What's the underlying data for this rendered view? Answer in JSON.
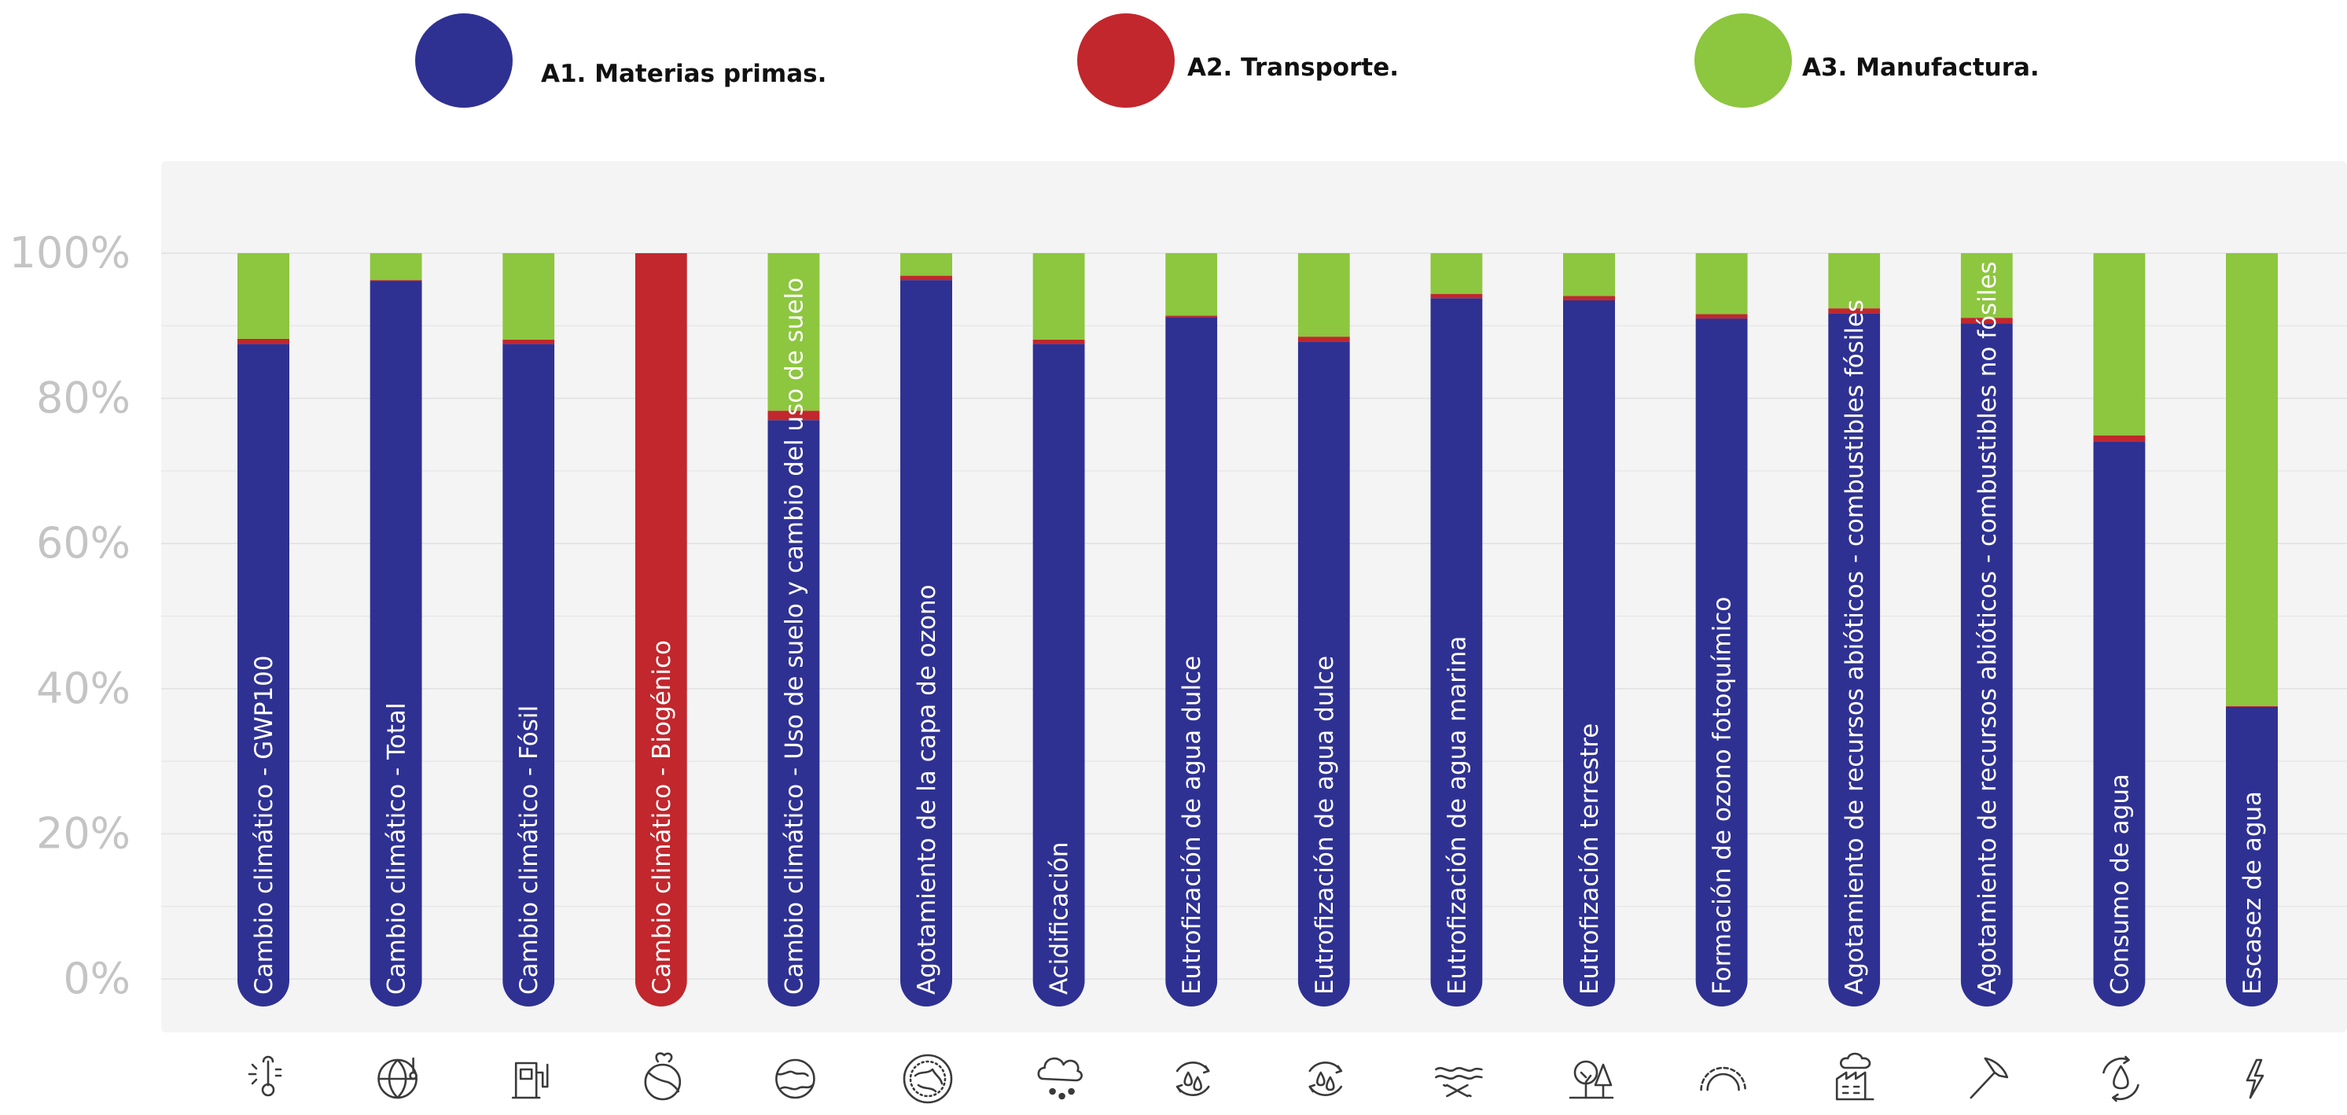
{
  "colors": {
    "a1": "#2e3192",
    "a2": "#c1272d",
    "a3": "#8dc63f",
    "panel": "#f4f4f4",
    "grid": "#e2e2e2",
    "tick": "#c4c4c4"
  },
  "legend": [
    {
      "key": "a1",
      "label": "A1. Materias primas."
    },
    {
      "key": "a2",
      "label": "A2. Transporte."
    },
    {
      "key": "a3",
      "label": "A3. Manufactura."
    }
  ],
  "chart_data": {
    "type": "bar",
    "stacked": true,
    "orientation": "vertical",
    "y_tick_labels": [
      "0%",
      "20%",
      "40%",
      "60%",
      "80%",
      "100%"
    ],
    "ylim": [
      0,
      100
    ],
    "grid": true,
    "legend_position": "top",
    "categories": [
      "Cambio climático - GWP100",
      "Cambio climático - Total",
      "Cambio climático - Fósil",
      "Cambio climático - Biogénico",
      "Cambio climático - Uso de suelo y cambio del uso de suelo",
      "Agotamiento de la capa de ozono",
      "Acidificación",
      "Eutrofización de agua dulce",
      "Eutrofización de agua dulce",
      "Eutrofización de agua marina",
      "Eutrofización terrestre",
      "Formación de ozono fotoquímico",
      "Agotamiento de recursos abióticos - combustibles fósiles",
      "Agotamiento de recursos abióticos - combustibles no fósiles",
      "Consumo de agua",
      "Escasez de agua"
    ],
    "series": [
      {
        "name": "A1. Materias primas.",
        "key": "a1",
        "values": [
          87.5,
          96.2,
          87.5,
          0,
          77.0,
          96.3,
          87.5,
          91.2,
          87.8,
          93.8,
          93.5,
          91.0,
          91.7,
          90.3,
          74.0,
          37.5
        ]
      },
      {
        "name": "A2. Transporte.",
        "key": "a2",
        "values": [
          0.7,
          0.1,
          0.6,
          100,
          1.3,
          0.6,
          0.6,
          0.2,
          0.7,
          0.6,
          0.6,
          0.6,
          0.7,
          0.8,
          0.9,
          0.1
        ]
      },
      {
        "name": "A3. Manufactura.",
        "key": "a3",
        "values": [
          11.8,
          3.7,
          11.9,
          0,
          21.7,
          3.1,
          11.9,
          8.6,
          11.5,
          5.6,
          5.9,
          8.4,
          7.6,
          8.9,
          25.1,
          62.4
        ]
      }
    ]
  },
  "icons": [
    "thermometer-sun-icon",
    "globe-thermometer-icon",
    "fuel-pump-icon",
    "leaf-globe-icon",
    "land-use-globe-icon",
    "ozone-globe-icon",
    "acid-rain-icon",
    "water-drops-cycle-icon",
    "water-drops-cycle-icon",
    "marine-waves-icon",
    "terrestrial-trees-icon",
    "ozone-arc-icon",
    "factory-icon",
    "pickaxe-icon",
    "water-drop-cycle-icon",
    "lightning-icon"
  ]
}
